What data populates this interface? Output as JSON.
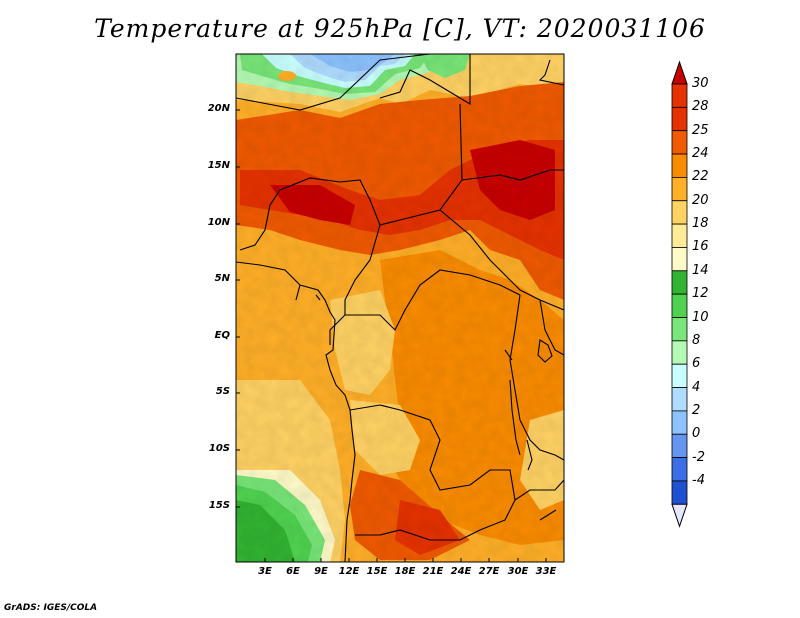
{
  "title": "Temperature at 925hPa [C], VT: 2020031106",
  "credit": "GrADS: IGES/COLA",
  "lat_ticks": [
    "20N",
    "15N",
    "10N",
    "5N",
    "EQ",
    "5S",
    "10S",
    "15S"
  ],
  "lon_ticks": [
    "3E",
    "6E",
    "9E",
    "12E",
    "15E",
    "18E",
    "21E",
    "24E",
    "27E",
    "30E",
    "33E"
  ],
  "colorbar": {
    "labels": [
      "30",
      "28",
      "25",
      "24",
      "22",
      "20",
      "18",
      "16",
      "14",
      "12",
      "10",
      "8",
      "6",
      "4",
      "2",
      "0",
      "-2",
      "-4"
    ],
    "colors": [
      "#c80000",
      "#e63200",
      "#f05a00",
      "#fa8c00",
      "#ffaf28",
      "#ffd264",
      "#ffeb96",
      "#fffac8",
      "#32b432",
      "#50d250",
      "#78e678",
      "#b4fab4",
      "#c8ffff",
      "#afdcff",
      "#8cc3ff",
      "#6496f0",
      "#3c6ee6",
      "#1e50d2",
      "#0a32b4",
      "#000a80"
    ],
    "top_arrow_color": "#c80000",
    "bottom_arrow_color": "#e6e6ff"
  },
  "map": {
    "region": "Central Africa",
    "lon_range": [
      "0E",
      "35E"
    ],
    "lat_range": [
      "19S",
      "24N"
    ]
  }
}
